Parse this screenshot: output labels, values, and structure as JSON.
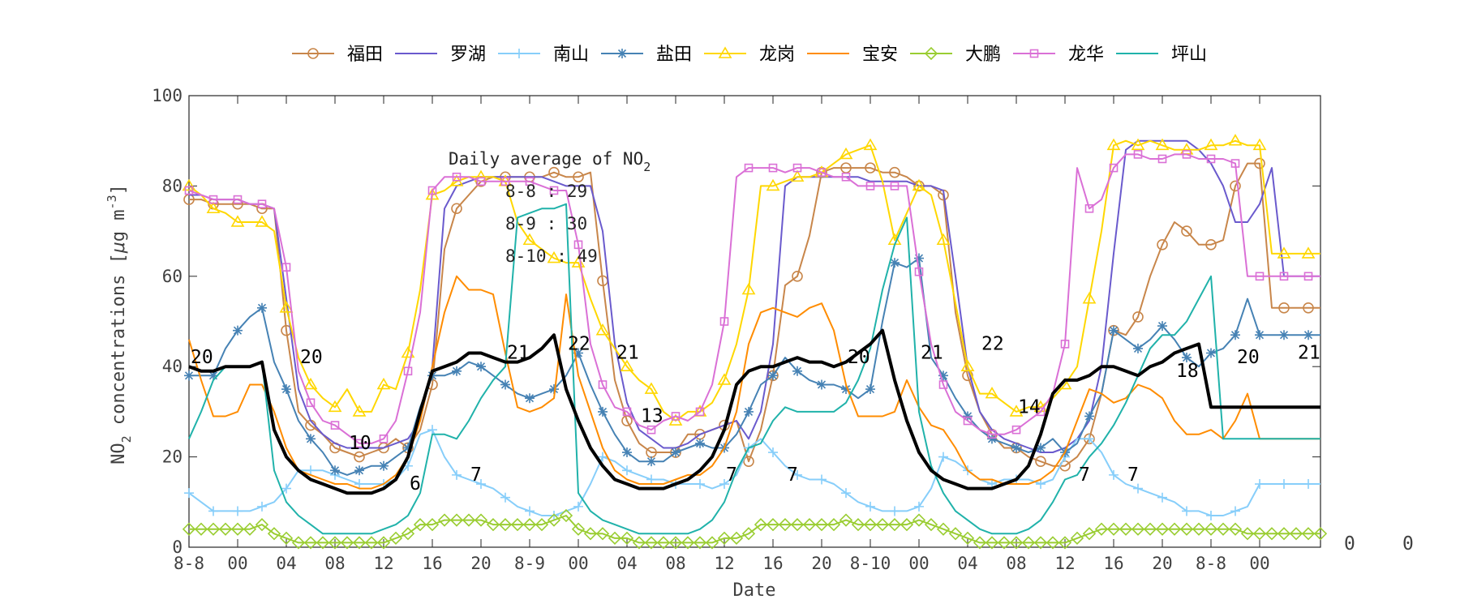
{
  "chart_data": {
    "type": "line",
    "xlabel": "Date",
    "ylabel_parts": [
      "NO",
      "2",
      " concentrations [",
      "μ",
      "g m",
      "-3",
      "]"
    ],
    "ylim": [
      0,
      100
    ],
    "yticks": [
      "0",
      "20",
      "40",
      "60",
      "80",
      "100"
    ],
    "x": [
      0,
      1,
      2,
      3,
      4,
      5,
      6,
      7,
      8,
      9,
      10,
      11,
      12,
      13,
      14,
      15,
      16,
      17,
      18,
      19,
      20,
      21,
      22,
      23,
      24,
      25,
      26,
      27,
      28,
      29,
      30,
      31,
      32,
      33,
      34,
      35,
      36,
      37,
      38,
      39,
      40,
      41,
      42,
      43,
      44,
      45,
      46,
      47,
      48,
      49,
      50,
      51,
      52,
      53,
      54,
      55,
      56,
      57,
      58,
      59,
      60,
      61,
      62,
      63,
      64,
      65,
      66,
      67,
      68,
      69,
      70,
      71,
      72,
      73,
      74,
      75,
      76,
      77,
      78,
      79,
      80,
      81,
      82,
      83,
      84,
      85,
      86,
      87,
      88,
      89,
      90,
      91,
      92,
      93
    ],
    "xlim": [
      0,
      93
    ],
    "xticks": [
      {
        "x": 0,
        "label": "8-8"
      },
      {
        "x": 4,
        "label": "00"
      },
      {
        "x": 8,
        "label": "04"
      },
      {
        "x": 12,
        "label": "08"
      },
      {
        "x": 16,
        "label": "12"
      },
      {
        "x": 20,
        "label": "16"
      },
      {
        "x": 24,
        "label": "20"
      },
      {
        "x": 28,
        "label": "8-9"
      },
      {
        "x": 32,
        "label": "00"
      },
      {
        "x": 36,
        "label": "04"
      },
      {
        "x": 40,
        "label": "08"
      },
      {
        "x": 44,
        "label": "12"
      },
      {
        "x": 48,
        "label": "16"
      },
      {
        "x": 52,
        "label": "20"
      },
      {
        "x": 56,
        "label": "8-10"
      },
      {
        "x": 60,
        "label": "00"
      },
      {
        "x": 64,
        "label": "04"
      },
      {
        "x": 68,
        "label": "08"
      },
      {
        "x": 72,
        "label": "12"
      },
      {
        "x": 76,
        "label": "16"
      },
      {
        "x": 80,
        "label": "20"
      },
      {
        "x": 84,
        "label": "8-8"
      },
      {
        "x": 88,
        "label": "00"
      }
    ],
    "right_labels": [
      "0",
      "0",
      "0"
    ],
    "series": [
      {
        "name": "福田",
        "color": "#c8864a",
        "marker": "circle",
        "values": [
          77,
          77,
          76,
          76,
          76,
          76,
          75,
          75,
          48,
          30,
          27,
          25,
          22,
          21,
          20,
          21,
          22,
          24,
          22,
          26,
          36,
          66,
          75,
          78,
          81,
          82,
          82,
          82,
          82,
          82,
          83,
          82,
          82,
          83,
          59,
          37,
          28,
          23,
          21,
          21,
          21,
          25,
          25,
          26,
          27,
          28,
          19,
          26,
          38,
          58,
          60,
          69,
          83,
          84,
          84,
          84,
          84,
          83,
          83,
          82,
          80,
          80,
          78,
          52,
          38,
          30,
          25,
          22,
          22,
          20,
          19,
          18,
          18,
          20,
          24,
          34,
          48,
          47,
          51,
          60,
          67,
          72,
          70,
          67,
          67,
          68,
          80,
          85,
          85,
          53,
          53,
          53,
          53,
          53
        ]
      },
      {
        "name": "罗湖",
        "color": "#6a5acd",
        "marker": "none",
        "values": [
          78,
          78,
          77,
          77,
          77,
          76,
          76,
          75,
          55,
          35,
          28,
          25,
          23,
          22,
          22,
          22,
          22,
          23,
          24,
          28,
          40,
          75,
          80,
          81,
          82,
          82,
          82,
          82,
          82,
          82,
          81,
          80,
          80,
          80,
          70,
          45,
          32,
          26,
          24,
          22,
          22,
          23,
          25,
          26,
          27,
          28,
          24,
          30,
          45,
          80,
          82,
          82,
          82,
          82,
          82,
          82,
          81,
          81,
          81,
          81,
          80,
          80,
          79,
          60,
          40,
          30,
          26,
          24,
          23,
          22,
          21,
          21,
          22,
          24,
          28,
          40,
          65,
          88,
          90,
          90,
          90,
          90,
          90,
          88,
          85,
          80,
          72,
          72,
          76,
          84,
          60,
          60,
          60,
          60
        ]
      },
      {
        "name": "南山",
        "color": "#87cefa",
        "marker": "plus",
        "values": [
          12,
          10,
          8,
          8,
          8,
          8,
          9,
          10,
          13,
          17,
          17,
          17,
          16,
          15,
          14,
          14,
          14,
          15,
          18,
          25,
          26,
          20,
          16,
          15,
          14,
          13,
          11,
          9,
          8,
          7,
          7,
          8,
          9,
          14,
          20,
          19,
          17,
          16,
          15,
          15,
          14,
          14,
          14,
          13,
          14,
          16,
          22,
          24,
          21,
          18,
          16,
          15,
          15,
          14,
          12,
          10,
          9,
          8,
          8,
          8,
          9,
          13,
          20,
          19,
          17,
          15,
          14,
          15,
          15,
          15,
          14,
          15,
          20,
          24,
          24,
          21,
          16,
          14,
          13,
          12,
          11,
          10,
          8,
          8,
          7,
          7,
          8,
          9,
          14,
          14,
          14,
          14,
          14,
          14
        ]
      },
      {
        "name": "盐田",
        "color": "#4682b4",
        "marker": "star",
        "values": [
          38,
          38,
          38,
          44,
          48,
          51,
          53,
          41,
          35,
          28,
          24,
          21,
          17,
          16,
          17,
          18,
          18,
          20,
          22,
          31,
          38,
          38,
          39,
          41,
          40,
          38,
          36,
          34,
          33,
          34,
          35,
          38,
          43,
          36,
          30,
          25,
          21,
          19,
          19,
          19,
          21,
          22,
          23,
          22,
          22,
          25,
          30,
          36,
          38,
          42,
          39,
          37,
          36,
          36,
          35,
          33,
          35,
          50,
          63,
          62,
          64,
          42,
          38,
          33,
          29,
          26,
          24,
          23,
          22,
          21,
          22,
          24,
          21,
          23,
          29,
          34,
          48,
          46,
          44,
          46,
          49,
          46,
          42,
          40,
          43,
          44,
          47,
          55,
          47,
          47,
          47,
          47,
          47,
          47
        ]
      },
      {
        "name": "龙岗",
        "color": "#ffd700",
        "marker": "triangle",
        "values": [
          80,
          78,
          75,
          74,
          72,
          72,
          72,
          70,
          53,
          42,
          36,
          33,
          31,
          35,
          30,
          30,
          36,
          35,
          43,
          57,
          78,
          79,
          81,
          82,
          82,
          82,
          81,
          72,
          68,
          66,
          64,
          63,
          63,
          55,
          48,
          44,
          40,
          37,
          35,
          30,
          28,
          30,
          30,
          32,
          37,
          45,
          57,
          80,
          80,
          81,
          82,
          82,
          83,
          85,
          87,
          88,
          89,
          81,
          68,
          74,
          80,
          78,
          68,
          54,
          40,
          34,
          34,
          32,
          30,
          31,
          31,
          33,
          36,
          40,
          55,
          70,
          89,
          90,
          89,
          90,
          89,
          88,
          88,
          88,
          89,
          89,
          90,
          89,
          89,
          65,
          65,
          65,
          65,
          65
        ]
      },
      {
        "name": "宝安",
        "color": "#ff8c00",
        "marker": "none",
        "values": [
          46,
          37,
          29,
          29,
          30,
          36,
          36,
          30,
          22,
          17,
          16,
          15,
          14,
          14,
          13,
          13,
          14,
          16,
          20,
          28,
          40,
          52,
          60,
          57,
          57,
          56,
          43,
          31,
          30,
          31,
          33,
          56,
          38,
          30,
          22,
          17,
          15,
          14,
          14,
          14,
          15,
          16,
          16,
          18,
          22,
          30,
          45,
          52,
          53,
          52,
          51,
          53,
          54,
          48,
          36,
          29,
          29,
          29,
          30,
          37,
          31,
          27,
          26,
          22,
          17,
          15,
          15,
          14,
          14,
          14,
          15,
          17,
          21,
          28,
          35,
          34,
          32,
          33,
          36,
          35,
          33,
          28,
          25,
          25,
          26,
          24,
          28,
          34,
          24,
          24,
          24,
          24,
          24,
          24
        ]
      },
      {
        "name": "大鹏",
        "color": "#9acd32",
        "marker": "diamond",
        "values": [
          4,
          4,
          4,
          4,
          4,
          4,
          5,
          3,
          2,
          1,
          1,
          1,
          1,
          1,
          1,
          1,
          1,
          2,
          3,
          5,
          5,
          6,
          6,
          6,
          6,
          5,
          5,
          5,
          5,
          5,
          6,
          7,
          4,
          3,
          3,
          2,
          2,
          1,
          1,
          1,
          1,
          1,
          1,
          1,
          2,
          2,
          3,
          5,
          5,
          5,
          5,
          5,
          5,
          5,
          6,
          5,
          5,
          5,
          5,
          5,
          6,
          5,
          4,
          3,
          2,
          1,
          1,
          1,
          1,
          1,
          1,
          1,
          1,
          2,
          3,
          4,
          4,
          4,
          4,
          4,
          4,
          4,
          4,
          4,
          4,
          4,
          4,
          3,
          3,
          3,
          3,
          3,
          3,
          3
        ]
      },
      {
        "name": "龙华",
        "color": "#da70d6",
        "marker": "square",
        "values": [
          79,
          78,
          77,
          77,
          77,
          76,
          76,
          75,
          62,
          39,
          32,
          28,
          27,
          25,
          23,
          23,
          24,
          28,
          39,
          52,
          79,
          82,
          82,
          82,
          81,
          81,
          81,
          81,
          81,
          80,
          79,
          79,
          67,
          45,
          36,
          31,
          30,
          27,
          26,
          28,
          29,
          28,
          30,
          36,
          50,
          82,
          84,
          84,
          84,
          83,
          84,
          84,
          83,
          82,
          82,
          80,
          80,
          80,
          80,
          80,
          61,
          45,
          36,
          30,
          28,
          26,
          25,
          25,
          26,
          28,
          30,
          34,
          45,
          84,
          75,
          77,
          84,
          87,
          87,
          86,
          86,
          87,
          87,
          86,
          86,
          86,
          85,
          60,
          60,
          60,
          60,
          60,
          60,
          60
        ]
      },
      {
        "name": "坪山",
        "color": "#20b2aa",
        "marker": "none",
        "values": [
          24,
          30,
          37,
          40,
          40,
          40,
          41,
          17,
          10,
          7,
          5,
          3,
          3,
          3,
          3,
          3,
          4,
          5,
          7,
          12,
          25,
          25,
          24,
          28,
          33,
          37,
          40,
          73,
          74,
          75,
          75,
          76,
          12,
          8,
          6,
          5,
          4,
          3,
          3,
          3,
          3,
          3,
          4,
          6,
          10,
          17,
          22,
          23,
          28,
          31,
          30,
          30,
          30,
          30,
          32,
          37,
          44,
          57,
          67,
          73,
          30,
          18,
          12,
          8,
          6,
          4,
          3,
          3,
          3,
          4,
          6,
          10,
          15,
          16,
          20,
          23,
          27,
          32,
          38,
          44,
          47,
          47,
          50,
          55,
          60,
          24,
          24,
          24,
          24,
          24,
          24,
          24,
          24,
          24
        ]
      },
      {
        "name": "",
        "color": "#000000",
        "marker": "none",
        "bold": true,
        "values": [
          40,
          39,
          39,
          40,
          40,
          40,
          41,
          26,
          20,
          17,
          15,
          14,
          13,
          12,
          12,
          12,
          13,
          15,
          20,
          30,
          39,
          40,
          41,
          43,
          43,
          42,
          41,
          41,
          42,
          44,
          47,
          35,
          28,
          22,
          18,
          15,
          14,
          13,
          13,
          13,
          14,
          15,
          17,
          20,
          26,
          36,
          39,
          40,
          40,
          41,
          42,
          41,
          41,
          40,
          41,
          43,
          45,
          48,
          37,
          28,
          21,
          17,
          15,
          14,
          13,
          13,
          13,
          14,
          15,
          18,
          25,
          34,
          37,
          37,
          38,
          40,
          40,
          39,
          38,
          40,
          41,
          43,
          44,
          45,
          31,
          31,
          31,
          31,
          31,
          31,
          31,
          31,
          31,
          31
        ]
      }
    ],
    "annotation": {
      "title_parts": [
        "Daily average of NO",
        "2"
      ],
      "lines": [
        "8-8 : 29",
        "8-9 : 30",
        "8-10 : 49"
      ]
    },
    "point_labels": [
      {
        "x": 0,
        "y": 40,
        "text": "20"
      },
      {
        "x": 9,
        "y": 40,
        "text": "20"
      },
      {
        "x": 13,
        "y": 21,
        "text": "10"
      },
      {
        "x": 18,
        "y": 12,
        "text": "6"
      },
      {
        "x": 23,
        "y": 14,
        "text": "7"
      },
      {
        "x": 26,
        "y": 41,
        "text": "21"
      },
      {
        "x": 31,
        "y": 43,
        "text": "22"
      },
      {
        "x": 35,
        "y": 41,
        "text": "21"
      },
      {
        "x": 37,
        "y": 27,
        "text": "13"
      },
      {
        "x": 44,
        "y": 14,
        "text": "7"
      },
      {
        "x": 49,
        "y": 14,
        "text": "7"
      },
      {
        "x": 54,
        "y": 40,
        "text": "20"
      },
      {
        "x": 60,
        "y": 41,
        "text": "21"
      },
      {
        "x": 65,
        "y": 43,
        "text": "22"
      },
      {
        "x": 68,
        "y": 29,
        "text": "14"
      },
      {
        "x": 73,
        "y": 14,
        "text": "7"
      },
      {
        "x": 77,
        "y": 14,
        "text": "7"
      },
      {
        "x": 81,
        "y": 37,
        "text": "18"
      },
      {
        "x": 86,
        "y": 40,
        "text": "20"
      },
      {
        "x": 91,
        "y": 41,
        "text": "21"
      }
    ]
  }
}
